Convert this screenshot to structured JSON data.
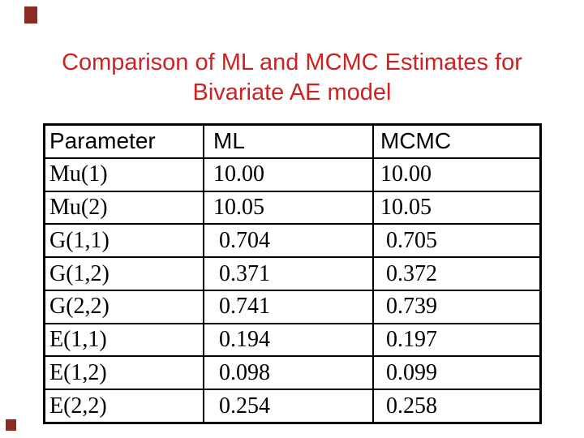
{
  "slide": {
    "background_color": "#ffffff",
    "decor_color": "#8e2a1f"
  },
  "title": {
    "line1": "Comparison of ML and MCMC Estimates for",
    "line2": "Bivariate AE model",
    "color": "#cc2222"
  },
  "table": {
    "headers": [
      "Parameter",
      "ML",
      "MCMC"
    ],
    "rows": [
      {
        "param": "Mu(1)",
        "ml": "10.00",
        "mcmc": "10.00"
      },
      {
        "param": "Mu(2)",
        "ml": "10.05",
        "mcmc": "10.05"
      },
      {
        "param": "G(1,1)",
        "ml": " 0.704",
        "mcmc": " 0.705"
      },
      {
        "param": "G(1,2)",
        "ml": " 0.371",
        "mcmc": " 0.372"
      },
      {
        "param": "G(2,2)",
        "ml": " 0.741",
        "mcmc": " 0.739"
      },
      {
        "param": "E(1,1)",
        "ml": " 0.194",
        "mcmc": " 0.197"
      },
      {
        "param": "E(1,2)",
        "ml": " 0.098",
        "mcmc": " 0.099"
      },
      {
        "param": "E(2,2)",
        "ml": " 0.254",
        "mcmc": " 0.258"
      }
    ]
  }
}
